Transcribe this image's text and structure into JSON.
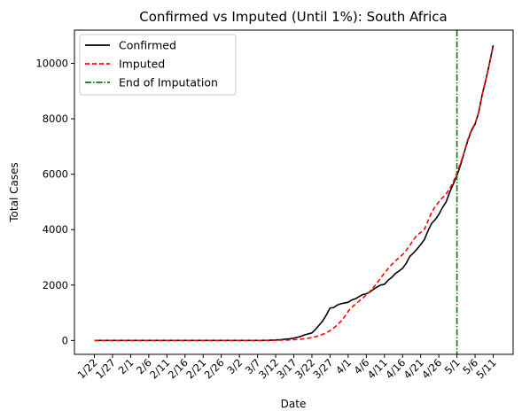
{
  "chart_data": {
    "type": "line",
    "title": "Confirmed vs Imputed (Until 1%): South Africa",
    "xlabel": "Date",
    "ylabel": "Total Cases",
    "x": [
      "1/22",
      "1/23",
      "1/24",
      "1/25",
      "1/26",
      "1/27",
      "1/28",
      "1/29",
      "1/30",
      "1/31",
      "2/1",
      "2/2",
      "2/3",
      "2/4",
      "2/5",
      "2/6",
      "2/7",
      "2/8",
      "2/9",
      "2/10",
      "2/11",
      "2/12",
      "2/13",
      "2/14",
      "2/15",
      "2/16",
      "2/17",
      "2/18",
      "2/19",
      "2/20",
      "2/21",
      "2/22",
      "2/23",
      "2/24",
      "2/25",
      "2/26",
      "2/27",
      "2/28",
      "2/29",
      "3/1",
      "3/2",
      "3/3",
      "3/4",
      "3/5",
      "3/6",
      "3/7",
      "3/8",
      "3/9",
      "3/10",
      "3/11",
      "3/12",
      "3/13",
      "3/14",
      "3/15",
      "3/16",
      "3/17",
      "3/18",
      "3/19",
      "3/20",
      "3/21",
      "3/22",
      "3/23",
      "3/24",
      "3/25",
      "3/26",
      "3/27",
      "3/28",
      "3/29",
      "3/30",
      "3/31",
      "4/1",
      "4/2",
      "4/3",
      "4/4",
      "4/5",
      "4/6",
      "4/7",
      "4/8",
      "4/9",
      "4/10",
      "4/11",
      "4/12",
      "4/13",
      "4/14",
      "4/15",
      "4/16",
      "4/17",
      "4/18",
      "4/19",
      "4/20",
      "4/21",
      "4/22",
      "4/23",
      "4/24",
      "4/25",
      "4/26",
      "4/27",
      "4/28",
      "4/29",
      "4/30",
      "5/1",
      "5/2",
      "5/3",
      "5/4",
      "5/5",
      "5/6",
      "5/7",
      "5/8",
      "5/9",
      "5/10",
      "5/11"
    ],
    "xtick_labels": [
      "1/22",
      "1/27",
      "2/1",
      "2/6",
      "2/11",
      "2/16",
      "2/21",
      "2/26",
      "3/2",
      "3/7",
      "3/12",
      "3/17",
      "3/22",
      "3/27",
      "4/1",
      "4/6",
      "4/11",
      "4/16",
      "4/21",
      "4/26",
      "5/1",
      "5/6",
      "5/11"
    ],
    "yticks": [
      0,
      2000,
      4000,
      6000,
      8000,
      10000
    ],
    "ylim": [
      -500,
      11200
    ],
    "grid": false,
    "legend_position": "top-left",
    "series": [
      {
        "name": "Confirmed",
        "color": "#000000",
        "style": "solid",
        "values": [
          0,
          0,
          0,
          0,
          0,
          0,
          0,
          0,
          0,
          0,
          0,
          0,
          0,
          0,
          0,
          0,
          0,
          0,
          0,
          0,
          0,
          0,
          0,
          0,
          0,
          0,
          0,
          0,
          0,
          0,
          0,
          0,
          0,
          0,
          0,
          0,
          0,
          0,
          0,
          0,
          0,
          0,
          0,
          0,
          0,
          1,
          3,
          7,
          7,
          13,
          17,
          24,
          38,
          51,
          62,
          85,
          116,
          150,
          202,
          240,
          274,
          402,
          554,
          709,
          927,
          1170,
          1187,
          1280,
          1326,
          1353,
          1380,
          1462,
          1505,
          1585,
          1655,
          1686,
          1749,
          1845,
          1934,
          2003,
          2028,
          2173,
          2272,
          2415,
          2506,
          2605,
          2783,
          3034,
          3158,
          3300,
          3465,
          3635,
          3953,
          4220,
          4361,
          4546,
          4793,
          4996,
          5350,
          5647,
          5951,
          6336,
          6783,
          7220,
          7572,
          7808,
          8232,
          8895,
          9420,
          10015,
          10652
        ]
      },
      {
        "name": "Imputed",
        "color": "#ff0000",
        "style": "dashed",
        "values": [
          0,
          0,
          0,
          0,
          0,
          0,
          0,
          0,
          0,
          0,
          0,
          0,
          0,
          0,
          0,
          0,
          0,
          0,
          0,
          0,
          0,
          0,
          0,
          0,
          0,
          0,
          0,
          0,
          0,
          0,
          0,
          0,
          0,
          0,
          0,
          0,
          0,
          0,
          0,
          0,
          0,
          0,
          0,
          0,
          0,
          0,
          1,
          2,
          3,
          4,
          6,
          8,
          11,
          15,
          20,
          27,
          36,
          48,
          63,
          82,
          106,
          136,
          174,
          222,
          282,
          356,
          447,
          559,
          694,
          858,
          1054,
          1192,
          1312,
          1420,
          1530,
          1640,
          1770,
          1920,
          2080,
          2260,
          2430,
          2590,
          2740,
          2870,
          2980,
          3100,
          3250,
          3430,
          3630,
          3800,
          3900,
          4000,
          4300,
          4620,
          4830,
          5000,
          5150,
          5280,
          5480,
          5720,
          6050,
          6400,
          6800,
          7250,
          7600,
          7830,
          8230,
          8890,
          9420,
          10010,
          10600
        ]
      }
    ],
    "vline": {
      "name": "End of Imputation",
      "x": "5/1",
      "color": "#008000",
      "style": "dashdot"
    }
  }
}
